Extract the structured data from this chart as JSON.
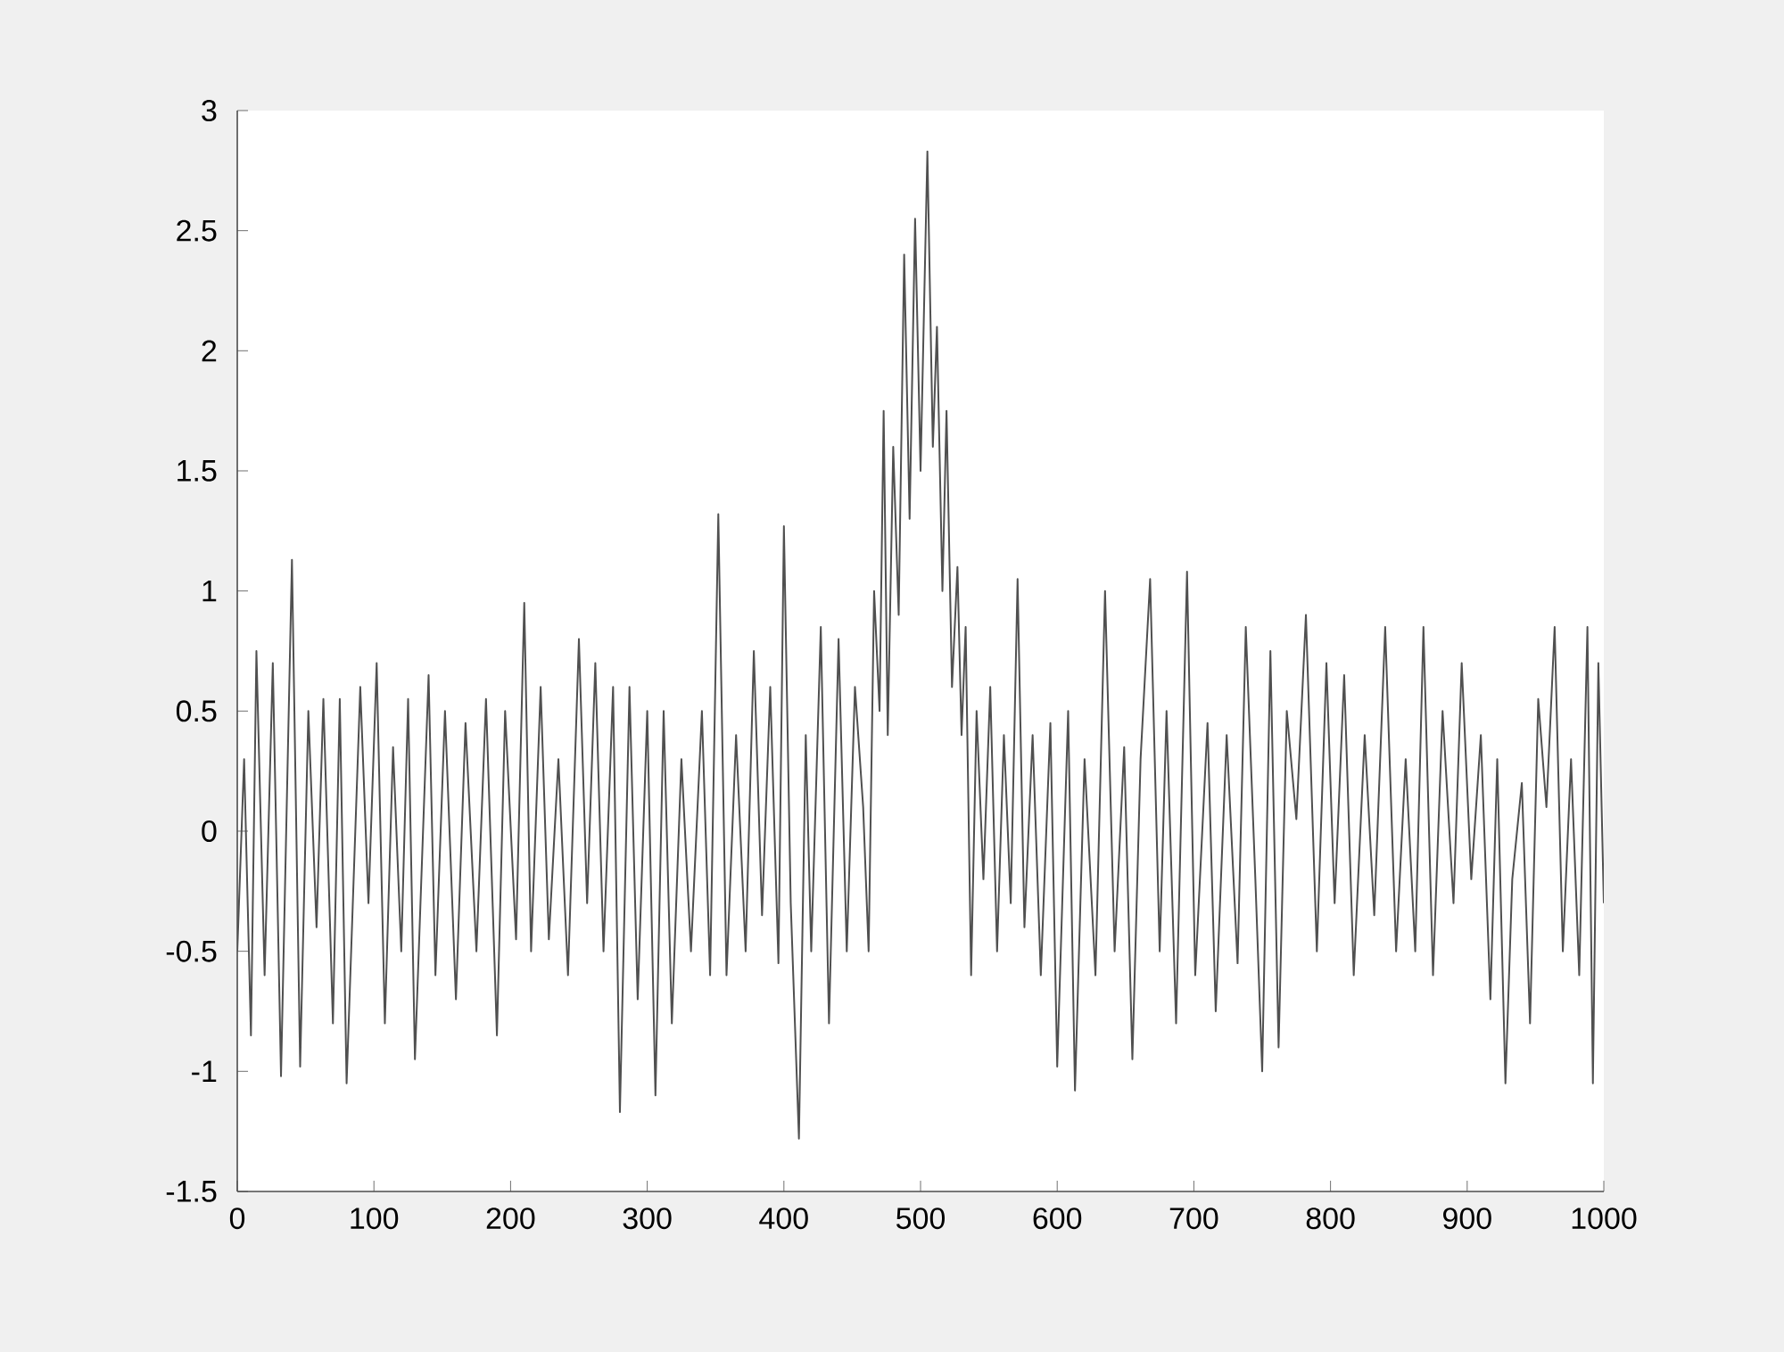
{
  "chart_data": {
    "type": "line",
    "color": "#505050",
    "x": [
      0,
      5,
      10,
      14,
      20,
      26,
      32,
      40,
      46,
      52,
      58,
      63,
      70,
      75,
      80,
      90,
      96,
      102,
      108,
      114,
      120,
      125,
      130,
      140,
      145,
      152,
      160,
      167,
      175,
      182,
      190,
      196,
      204,
      210,
      215,
      222,
      228,
      235,
      242,
      250,
      256,
      262,
      268,
      275,
      280,
      287,
      293,
      300,
      306,
      312,
      318,
      325,
      332,
      340,
      346,
      352,
      358,
      365,
      372,
      378,
      384,
      390,
      396,
      400,
      405,
      411,
      416,
      420,
      427,
      433,
      440,
      446,
      452,
      458,
      462,
      466,
      470,
      473,
      476,
      480,
      484,
      488,
      492,
      496,
      500,
      505,
      509,
      512,
      516,
      519,
      523,
      527,
      530,
      533,
      537,
      541,
      546,
      551,
      556,
      561,
      566,
      571,
      576,
      582,
      588,
      595,
      600,
      608,
      613,
      620,
      628,
      635,
      642,
      649,
      655,
      661,
      668,
      675,
      680,
      687,
      695,
      701,
      710,
      716,
      724,
      732,
      738,
      745,
      750,
      756,
      762,
      768,
      775,
      782,
      790,
      797,
      803,
      810,
      817,
      825,
      832,
      840,
      848,
      855,
      862,
      868,
      875,
      882,
      890,
      896,
      903,
      910,
      917,
      922,
      928,
      933,
      940,
      946,
      952,
      958,
      964,
      970,
      976,
      982,
      988,
      992,
      996,
      1000
    ],
    "values": [
      -0.5,
      0.3,
      -0.85,
      0.75,
      -0.6,
      0.7,
      -1.02,
      1.13,
      -0.98,
      0.5,
      -0.4,
      0.55,
      -0.8,
      0.55,
      -1.05,
      0.6,
      -0.3,
      0.7,
      -0.8,
      0.35,
      -0.5,
      0.55,
      -0.95,
      0.65,
      -0.6,
      0.5,
      -0.7,
      0.45,
      -0.5,
      0.55,
      -0.85,
      0.5,
      -0.45,
      0.95,
      -0.5,
      0.6,
      -0.45,
      0.3,
      -0.6,
      0.8,
      -0.3,
      0.7,
      -0.5,
      0.6,
      -1.17,
      0.6,
      -0.7,
      0.5,
      -1.1,
      0.5,
      -0.8,
      0.3,
      -0.5,
      0.5,
      -0.6,
      1.32,
      -0.6,
      0.4,
      -0.5,
      0.75,
      -0.35,
      0.6,
      -0.55,
      1.27,
      -0.3,
      -1.28,
      0.4,
      -0.5,
      0.85,
      -0.8,
      0.8,
      -0.5,
      0.6,
      0.1,
      -0.5,
      1.0,
      0.5,
      1.75,
      0.4,
      1.6,
      0.9,
      2.4,
      1.3,
      2.55,
      1.5,
      2.83,
      1.6,
      2.1,
      1.0,
      1.75,
      0.6,
      1.1,
      0.4,
      0.85,
      -0.6,
      0.5,
      -0.2,
      0.6,
      -0.5,
      0.4,
      -0.3,
      1.05,
      -0.4,
      0.4,
      -0.6,
      0.45,
      -0.98,
      0.5,
      -1.08,
      0.3,
      -0.6,
      1.0,
      -0.5,
      0.35,
      -0.95,
      0.3,
      1.05,
      -0.5,
      0.5,
      -0.8,
      1.08,
      -0.6,
      0.45,
      -0.75,
      0.4,
      -0.55,
      0.85,
      -0.2,
      -1.0,
      0.75,
      -0.9,
      0.5,
      0.05,
      0.9,
      -0.5,
      0.7,
      -0.3,
      0.65,
      -0.6,
      0.4,
      -0.35,
      0.85,
      -0.5,
      0.3,
      -0.5,
      0.85,
      -0.6,
      0.5,
      -0.3,
      0.7,
      -0.2,
      0.4,
      -0.7,
      0.3,
      -1.05,
      -0.2,
      0.2,
      -0.8,
      0.55,
      0.1,
      0.85,
      -0.5,
      0.3,
      -0.6,
      0.85,
      -1.05,
      0.7,
      -0.3
    ],
    "xlim": [
      0,
      1000
    ],
    "ylim": [
      -1.5,
      3
    ],
    "xticks": [
      0,
      100,
      200,
      300,
      400,
      500,
      600,
      700,
      800,
      900,
      1000
    ],
    "yticks": [
      -1.5,
      -1,
      -0.5,
      0,
      0.5,
      1,
      1.5,
      2,
      2.5,
      3
    ],
    "grid": false,
    "marker": "none",
    "line_style": "solid"
  }
}
